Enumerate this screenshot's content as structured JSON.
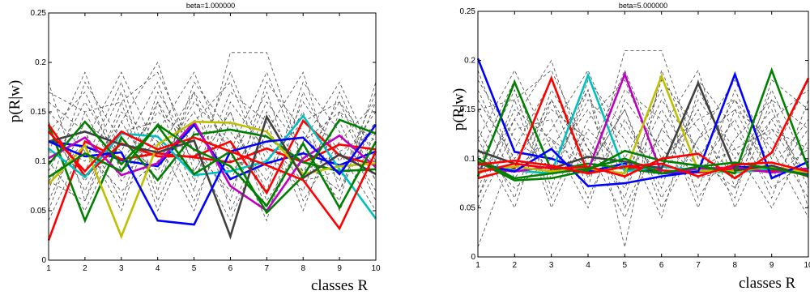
{
  "chart_data": [
    {
      "type": "line",
      "title": "beta=1.000000",
      "xlabel": "classes R",
      "ylabel": "p(R|w)",
      "x": [
        1,
        2,
        3,
        4,
        5,
        6,
        7,
        8,
        9,
        10
      ],
      "xticks": [
        "1",
        "2",
        "3",
        "4",
        "5",
        "6",
        "7",
        "8",
        "9",
        "10"
      ],
      "yticks": [
        "0",
        "0.05",
        "0.1",
        "0.15",
        "0.2",
        "0.25"
      ],
      "xlim": [
        1,
        10
      ],
      "ylim": [
        0,
        0.25
      ],
      "series": [
        {
          "color": "#0000ff",
          "values": [
            0.12,
            0.115,
            0.101,
            0.095,
            0.137,
            0.082,
            0.098,
            0.108,
            0.096,
            0.11
          ]
        },
        {
          "color": "#ff0000",
          "values": [
            0.02,
            0.12,
            0.102,
            0.108,
            0.104,
            0.099,
            0.113,
            0.099,
            0.117,
            0.112
          ]
        },
        {
          "color": "#008000",
          "values": [
            0.137,
            0.04,
            0.124,
            0.081,
            0.127,
            0.132,
            0.125,
            0.099,
            0.09,
            0.092
          ]
        },
        {
          "color": "#ff0000",
          "values": [
            0.137,
            0.085,
            0.118,
            0.105,
            0.105,
            0.12,
            0.068,
            0.141,
            0.106,
            0.096
          ]
        },
        {
          "color": "#00bfbf",
          "values": [
            0.113,
            0.084,
            0.128,
            0.125,
            0.086,
            0.09,
            0.1,
            0.146,
            0.092,
            0.042
          ]
        },
        {
          "color": "#bf00bf",
          "values": [
            0.103,
            0.124,
            0.086,
            0.098,
            0.14,
            0.075,
            0.05,
            0.103,
            0.126,
            0.094
          ]
        },
        {
          "color": "#bfbf00",
          "values": [
            0.077,
            0.116,
            0.024,
            0.117,
            0.14,
            0.139,
            0.13,
            0.087,
            0.095,
            0.098
          ]
        },
        {
          "color": "#404040",
          "values": [
            0.12,
            0.13,
            0.117,
            0.109,
            0.121,
            0.024,
            0.145,
            0.083,
            0.107,
            0.087
          ]
        },
        {
          "color": "#0000ff",
          "values": [
            0.12,
            0.105,
            0.109,
            0.04,
            0.036,
            0.11,
            0.12,
            0.124,
            0.087,
            0.137
          ]
        },
        {
          "color": "#008000",
          "values": [
            0.097,
            0.14,
            0.097,
            0.136,
            0.087,
            0.11,
            0.048,
            0.085,
            0.142,
            0.128
          ]
        },
        {
          "color": "#ff0000",
          "values": [
            0.13,
            0.09,
            0.13,
            0.112,
            0.124,
            0.11,
            0.096,
            0.081,
            0.032,
            0.11
          ]
        },
        {
          "color": "#008000",
          "values": [
            0.084,
            0.108,
            0.09,
            0.137,
            0.112,
            0.095,
            0.055,
            0.118,
            0.053,
            0.12
          ]
        }
      ],
      "dashed_series": [
        {
          "values": [
            0.13,
            0.17,
            0.09,
            0.16,
            0.07,
            0.21,
            0.21,
            0.1,
            0.16,
            0.08
          ]
        },
        {
          "values": [
            0.08,
            0.12,
            0.19,
            0.11,
            0.17,
            0.05,
            0.13,
            0.19,
            0.07,
            0.14
          ]
        },
        {
          "values": [
            0.18,
            0.06,
            0.14,
            0.2,
            0.09,
            0.15,
            0.06,
            0.12,
            0.18,
            0.1
          ]
        },
        {
          "values": [
            0.05,
            0.15,
            0.08,
            0.13,
            0.19,
            0.1,
            0.17,
            0.06,
            0.12,
            0.16
          ]
        },
        {
          "values": [
            0.11,
            0.09,
            0.17,
            0.06,
            0.14,
            0.18,
            0.09,
            0.15,
            0.05,
            0.13
          ]
        },
        {
          "values": [
            0.16,
            0.13,
            0.06,
            0.17,
            0.11,
            0.07,
            0.15,
            0.09,
            0.14,
            0.06
          ]
        },
        {
          "values": [
            0.07,
            0.18,
            0.12,
            0.09,
            0.16,
            0.12,
            0.04,
            0.17,
            0.1,
            0.15
          ]
        },
        {
          "values": [
            0.14,
            0.07,
            0.15,
            0.12,
            0.05,
            0.16,
            0.11,
            0.07,
            0.17,
            0.09
          ]
        },
        {
          "values": [
            0.09,
            0.16,
            0.1,
            0.15,
            0.12,
            0.06,
            0.18,
            0.13,
            0.08,
            0.17
          ]
        },
        {
          "values": [
            0.12,
            0.1,
            0.18,
            0.07,
            0.18,
            0.13,
            0.08,
            0.16,
            0.11,
            0.05
          ]
        },
        {
          "values": [
            0.06,
            0.14,
            0.11,
            0.18,
            0.08,
            0.17,
            0.14,
            0.05,
            0.15,
            0.12
          ]
        },
        {
          "values": [
            0.15,
            0.11,
            0.07,
            0.1,
            0.15,
            0.08,
            0.16,
            0.11,
            0.06,
            0.18
          ]
        },
        {
          "values": [
            0.1,
            0.05,
            0.13,
            0.14,
            0.06,
            0.14,
            0.07,
            0.18,
            0.13,
            0.07
          ]
        },
        {
          "values": [
            0.17,
            0.15,
            0.16,
            0.05,
            0.13,
            0.09,
            0.12,
            0.08,
            0.09,
            0.14
          ]
        },
        {
          "values": [
            0.04,
            0.12,
            0.05,
            0.16,
            0.1,
            0.19,
            0.1,
            0.14,
            0.16,
            0.11
          ]
        },
        {
          "values": [
            0.13,
            0.08,
            0.14,
            0.08,
            0.17,
            0.11,
            0.19,
            0.1,
            0.07,
            0.16
          ]
        },
        {
          "values": [
            0.11,
            0.19,
            0.09,
            0.12,
            0.09,
            0.15,
            0.05,
            0.12,
            0.15,
            0.08
          ]
        },
        {
          "values": [
            0.08,
            0.06,
            0.16,
            0.19,
            0.11,
            0.04,
            0.13,
            0.09,
            0.11,
            0.13
          ]
        }
      ]
    },
    {
      "type": "line",
      "title": "beta=5.000000",
      "xlabel": "classes R",
      "ylabel": "p(R|w)",
      "x": [
        1,
        2,
        3,
        4,
        5,
        6,
        7,
        8,
        9,
        10
      ],
      "xticks": [
        "1",
        "2",
        "3",
        "4",
        "5",
        "6",
        "7",
        "8",
        "9",
        "10"
      ],
      "yticks": [
        "0",
        "0.05",
        "0.1",
        "0.15",
        "0.2",
        "0.25"
      ],
      "xlim": [
        1,
        10
      ],
      "ylim": [
        0,
        0.25
      ],
      "series": [
        {
          "color": "#0000ff",
          "values": [
            0.202,
            0.107,
            0.1,
            0.087,
            0.095,
            0.085,
            0.087,
            0.092,
            0.09,
            0.085
          ]
        },
        {
          "color": "#008000",
          "values": [
            0.082,
            0.178,
            0.088,
            0.095,
            0.09,
            0.085,
            0.09,
            0.087,
            0.088,
            0.087
          ]
        },
        {
          "color": "#ff0000",
          "values": [
            0.08,
            0.09,
            0.182,
            0.085,
            0.092,
            0.088,
            0.086,
            0.09,
            0.087,
            0.09
          ]
        },
        {
          "color": "#00bfbf",
          "values": [
            0.095,
            0.088,
            0.085,
            0.185,
            0.087,
            0.092,
            0.088,
            0.086,
            0.09,
            0.088
          ]
        },
        {
          "color": "#bf00bf",
          "values": [
            0.09,
            0.087,
            0.092,
            0.088,
            0.186,
            0.085,
            0.09,
            0.091,
            0.086,
            0.09
          ]
        },
        {
          "color": "#bfbf00",
          "values": [
            0.088,
            0.092,
            0.087,
            0.09,
            0.085,
            0.184,
            0.088,
            0.087,
            0.092,
            0.086
          ]
        },
        {
          "color": "#404040",
          "values": [
            0.108,
            0.095,
            0.09,
            0.102,
            0.097,
            0.09,
            0.177,
            0.088,
            0.093,
            0.082
          ]
        },
        {
          "color": "#0000ff",
          "values": [
            0.095,
            0.087,
            0.11,
            0.072,
            0.075,
            0.082,
            0.087,
            0.186,
            0.08,
            0.097
          ]
        },
        {
          "color": "#008000",
          "values": [
            0.097,
            0.078,
            0.08,
            0.088,
            0.108,
            0.098,
            0.093,
            0.085,
            0.19,
            0.09
          ]
        },
        {
          "color": "#ff0000",
          "values": [
            0.086,
            0.095,
            0.09,
            0.092,
            0.082,
            0.1,
            0.105,
            0.08,
            0.106,
            0.182
          ]
        },
        {
          "color": "#008000",
          "values": [
            0.1,
            0.08,
            0.085,
            0.09,
            0.1,
            0.085,
            0.092,
            0.096,
            0.09,
            0.083
          ]
        },
        {
          "color": "#ff0000",
          "values": [
            0.094,
            0.098,
            0.093,
            0.085,
            0.092,
            0.095,
            0.082,
            0.094,
            0.096,
            0.087
          ]
        }
      ],
      "dashed_series": [
        {
          "values": [
            0.17,
            0.09,
            0.16,
            0.07,
            0.21,
            0.21,
            0.1,
            0.16,
            0.08,
            0.13
          ]
        },
        {
          "values": [
            0.12,
            0.19,
            0.11,
            0.17,
            0.05,
            0.13,
            0.19,
            0.07,
            0.14,
            0.08
          ]
        },
        {
          "values": [
            0.06,
            0.14,
            0.2,
            0.09,
            0.15,
            0.06,
            0.12,
            0.18,
            0.1,
            0.18
          ]
        },
        {
          "values": [
            0.15,
            0.08,
            0.13,
            0.19,
            0.1,
            0.17,
            0.06,
            0.12,
            0.16,
            0.05
          ]
        },
        {
          "values": [
            0.09,
            0.17,
            0.06,
            0.14,
            0.18,
            0.09,
            0.15,
            0.05,
            0.13,
            0.11
          ]
        },
        {
          "values": [
            0.13,
            0.06,
            0.17,
            0.11,
            0.07,
            0.15,
            0.09,
            0.14,
            0.06,
            0.16
          ]
        },
        {
          "values": [
            0.18,
            0.12,
            0.09,
            0.16,
            0.12,
            0.04,
            0.17,
            0.1,
            0.15,
            0.07
          ]
        },
        {
          "values": [
            0.07,
            0.15,
            0.12,
            0.05,
            0.16,
            0.11,
            0.07,
            0.17,
            0.09,
            0.14
          ]
        },
        {
          "values": [
            0.16,
            0.1,
            0.15,
            0.12,
            0.06,
            0.18,
            0.13,
            0.08,
            0.17,
            0.09
          ]
        },
        {
          "values": [
            0.1,
            0.18,
            0.07,
            0.18,
            0.13,
            0.08,
            0.16,
            0.11,
            0.05,
            0.12
          ]
        },
        {
          "values": [
            0.01,
            0.11,
            0.18,
            0.08,
            0.17,
            0.14,
            0.05,
            0.15,
            0.12,
            0.06
          ]
        },
        {
          "values": [
            0.11,
            0.07,
            0.1,
            0.15,
            0.08,
            0.16,
            0.11,
            0.06,
            0.18,
            0.15
          ]
        },
        {
          "values": [
            0.05,
            0.13,
            0.14,
            0.06,
            0.14,
            0.07,
            0.18,
            0.13,
            0.07,
            0.1
          ]
        },
        {
          "values": [
            0.15,
            0.16,
            0.05,
            0.13,
            0.09,
            0.12,
            0.08,
            0.09,
            0.14,
            0.17
          ]
        },
        {
          "values": [
            0.12,
            0.05,
            0.16,
            0.1,
            0.19,
            0.1,
            0.14,
            0.16,
            0.11,
            0.04
          ]
        },
        {
          "values": [
            0.08,
            0.14,
            0.08,
            0.17,
            0.01,
            0.19,
            0.1,
            0.07,
            0.16,
            0.13
          ]
        },
        {
          "values": [
            0.19,
            0.09,
            0.12,
            0.09,
            0.15,
            0.05,
            0.12,
            0.15,
            0.08,
            0.11
          ]
        },
        {
          "values": [
            0.06,
            0.16,
            0.19,
            0.11,
            0.04,
            0.13,
            0.09,
            0.11,
            0.13,
            0.08
          ]
        }
      ]
    }
  ]
}
